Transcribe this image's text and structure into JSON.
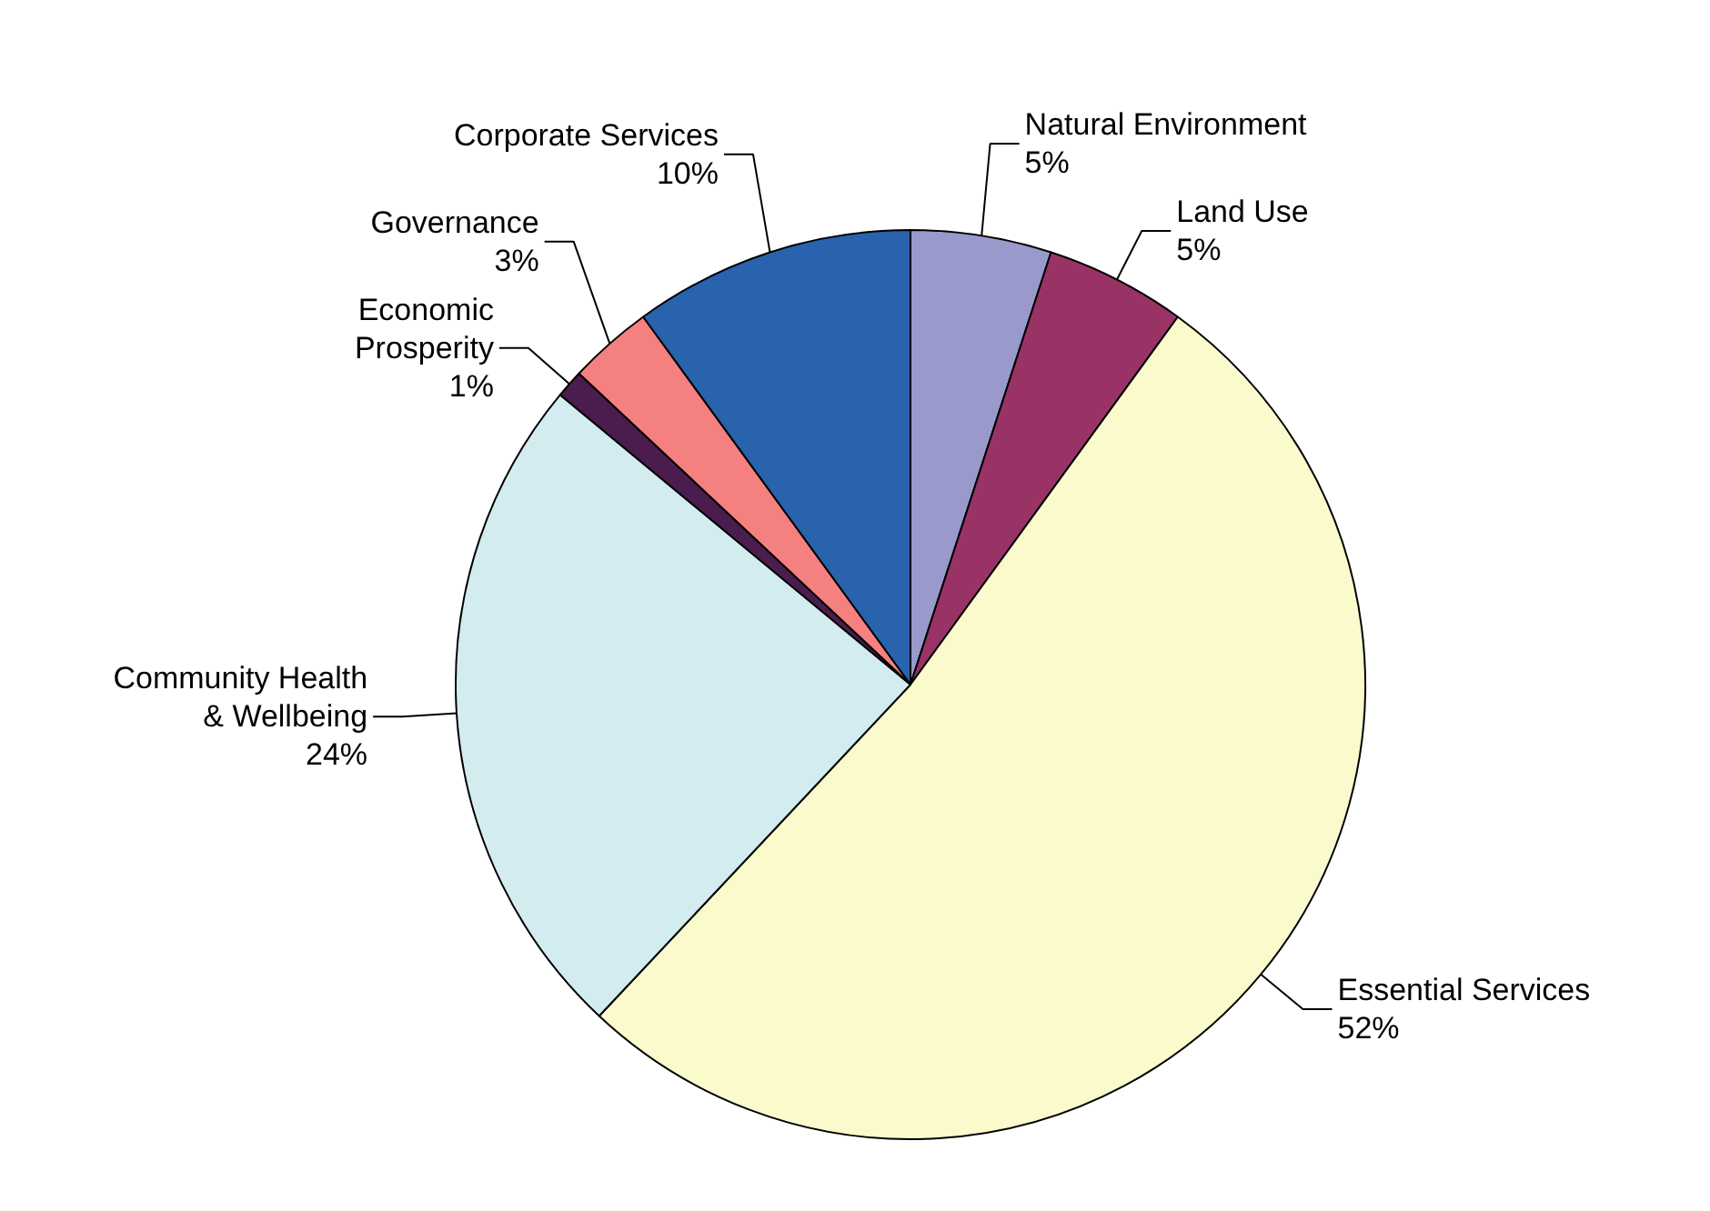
{
  "chart_data": {
    "type": "pie",
    "categories": [
      "Natural Environment",
      "Land Use",
      "Essential Services",
      "Community Health\n& Wellbeing",
      "Economic\nProsperity",
      "Governance",
      "Corporate Services"
    ],
    "values": [
      5,
      5,
      52,
      24,
      1,
      3,
      10
    ],
    "value_labels": [
      "5%",
      "5%",
      "52%",
      "24%",
      "1%",
      "3%",
      "10%"
    ],
    "colors": [
      "#9999cc",
      "#993366",
      "#fafacd",
      "#d2ecf0",
      "#4b1c4e",
      "#f58080",
      "#2962ad"
    ]
  }
}
